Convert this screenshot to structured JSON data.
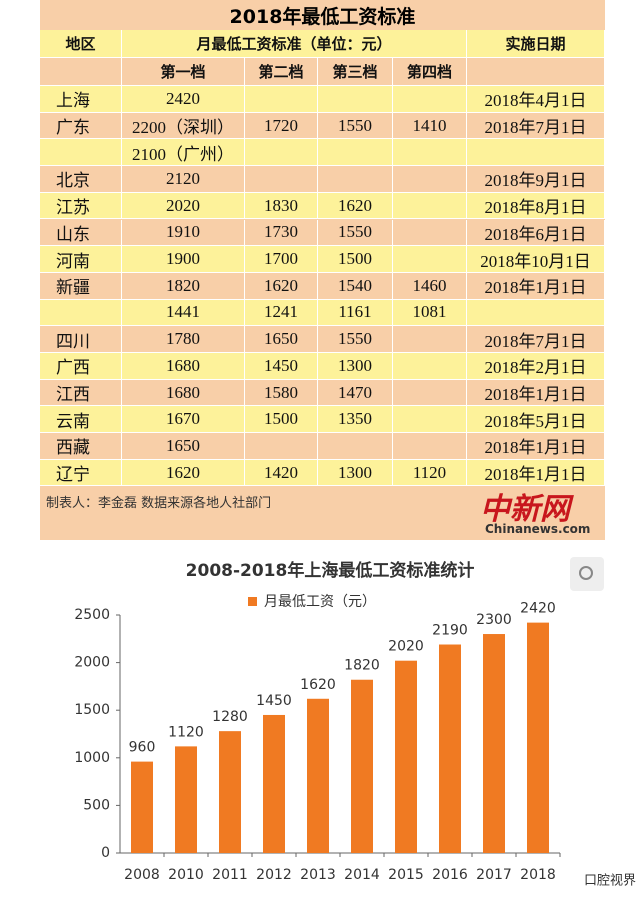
{
  "table": {
    "title": "2018年最低工资标准",
    "header": [
      "地区",
      "月最低工资标准（单位：元）",
      "实施日期"
    ],
    "subheader": [
      "第一档",
      "第二档",
      "第三档",
      "第四档"
    ],
    "rows": [
      [
        "上海",
        "2420",
        null,
        null,
        null,
        "2018年4月1日"
      ],
      [
        "广东",
        "2200（深圳）",
        "1720",
        "1550",
        "1410",
        "2018年7月1日"
      ],
      [
        null,
        "2100（广州）",
        null,
        null,
        null,
        null
      ],
      [
        "北京",
        "2120",
        null,
        null,
        null,
        "2018年9月1日"
      ],
      [
        "江苏",
        "2020",
        "1830",
        "1620",
        null,
        "2018年8月1日"
      ],
      [
        "山东",
        "1910",
        "1730",
        "1550",
        null,
        "2018年6月1日"
      ],
      [
        "河南",
        "1900",
        "1700",
        "1500",
        null,
        "2018年10月1日"
      ],
      [
        "新疆",
        "1820",
        "1620",
        "1540",
        "1460",
        "2018年1月1日"
      ],
      [
        null,
        "1441",
        "1241",
        "1161",
        "1081",
        null
      ],
      [
        "四川",
        "1780",
        "1650",
        "1550",
        null,
        "2018年7月1日"
      ],
      [
        "广西",
        "1680",
        "1450",
        "1300",
        null,
        "2018年2月1日"
      ],
      [
        "江西",
        "1680",
        "1580",
        "1470",
        null,
        "2018年1月1日"
      ],
      [
        "云南",
        "1670",
        "1500",
        "1350",
        null,
        "2018年5月1日"
      ],
      [
        "西藏",
        "1650",
        null,
        null,
        null,
        "2018年1月1日"
      ],
      [
        "辽宁",
        "1620",
        "1420",
        "1300",
        "1120",
        "2018年1月1日"
      ]
    ],
    "footer": "制表人：李金磊 数据来源各地人社部门",
    "source_logo": "中新网",
    "source_site": "Chinanews.com"
  },
  "chart_data": {
    "type": "bar",
    "title": "2008-2018年上海最低工资标准统计",
    "categories": [
      "2008",
      "2010",
      "2011",
      "2012",
      "2013",
      "2014",
      "2015",
      "2016",
      "2017",
      "2018"
    ],
    "series": [
      {
        "name": "月最低工资（元）",
        "color": "#f07a22",
        "values": [
          960,
          1120,
          1280,
          1450,
          1620,
          1820,
          2020,
          2190,
          2300,
          2420
        ]
      }
    ],
    "ylim": [
      0,
      2500
    ],
    "yticks": [
      0,
      500,
      1000,
      1500,
      2000,
      2500
    ],
    "grid": false,
    "legend": "top",
    "data_labels": true
  },
  "watermark": "口腔视界"
}
